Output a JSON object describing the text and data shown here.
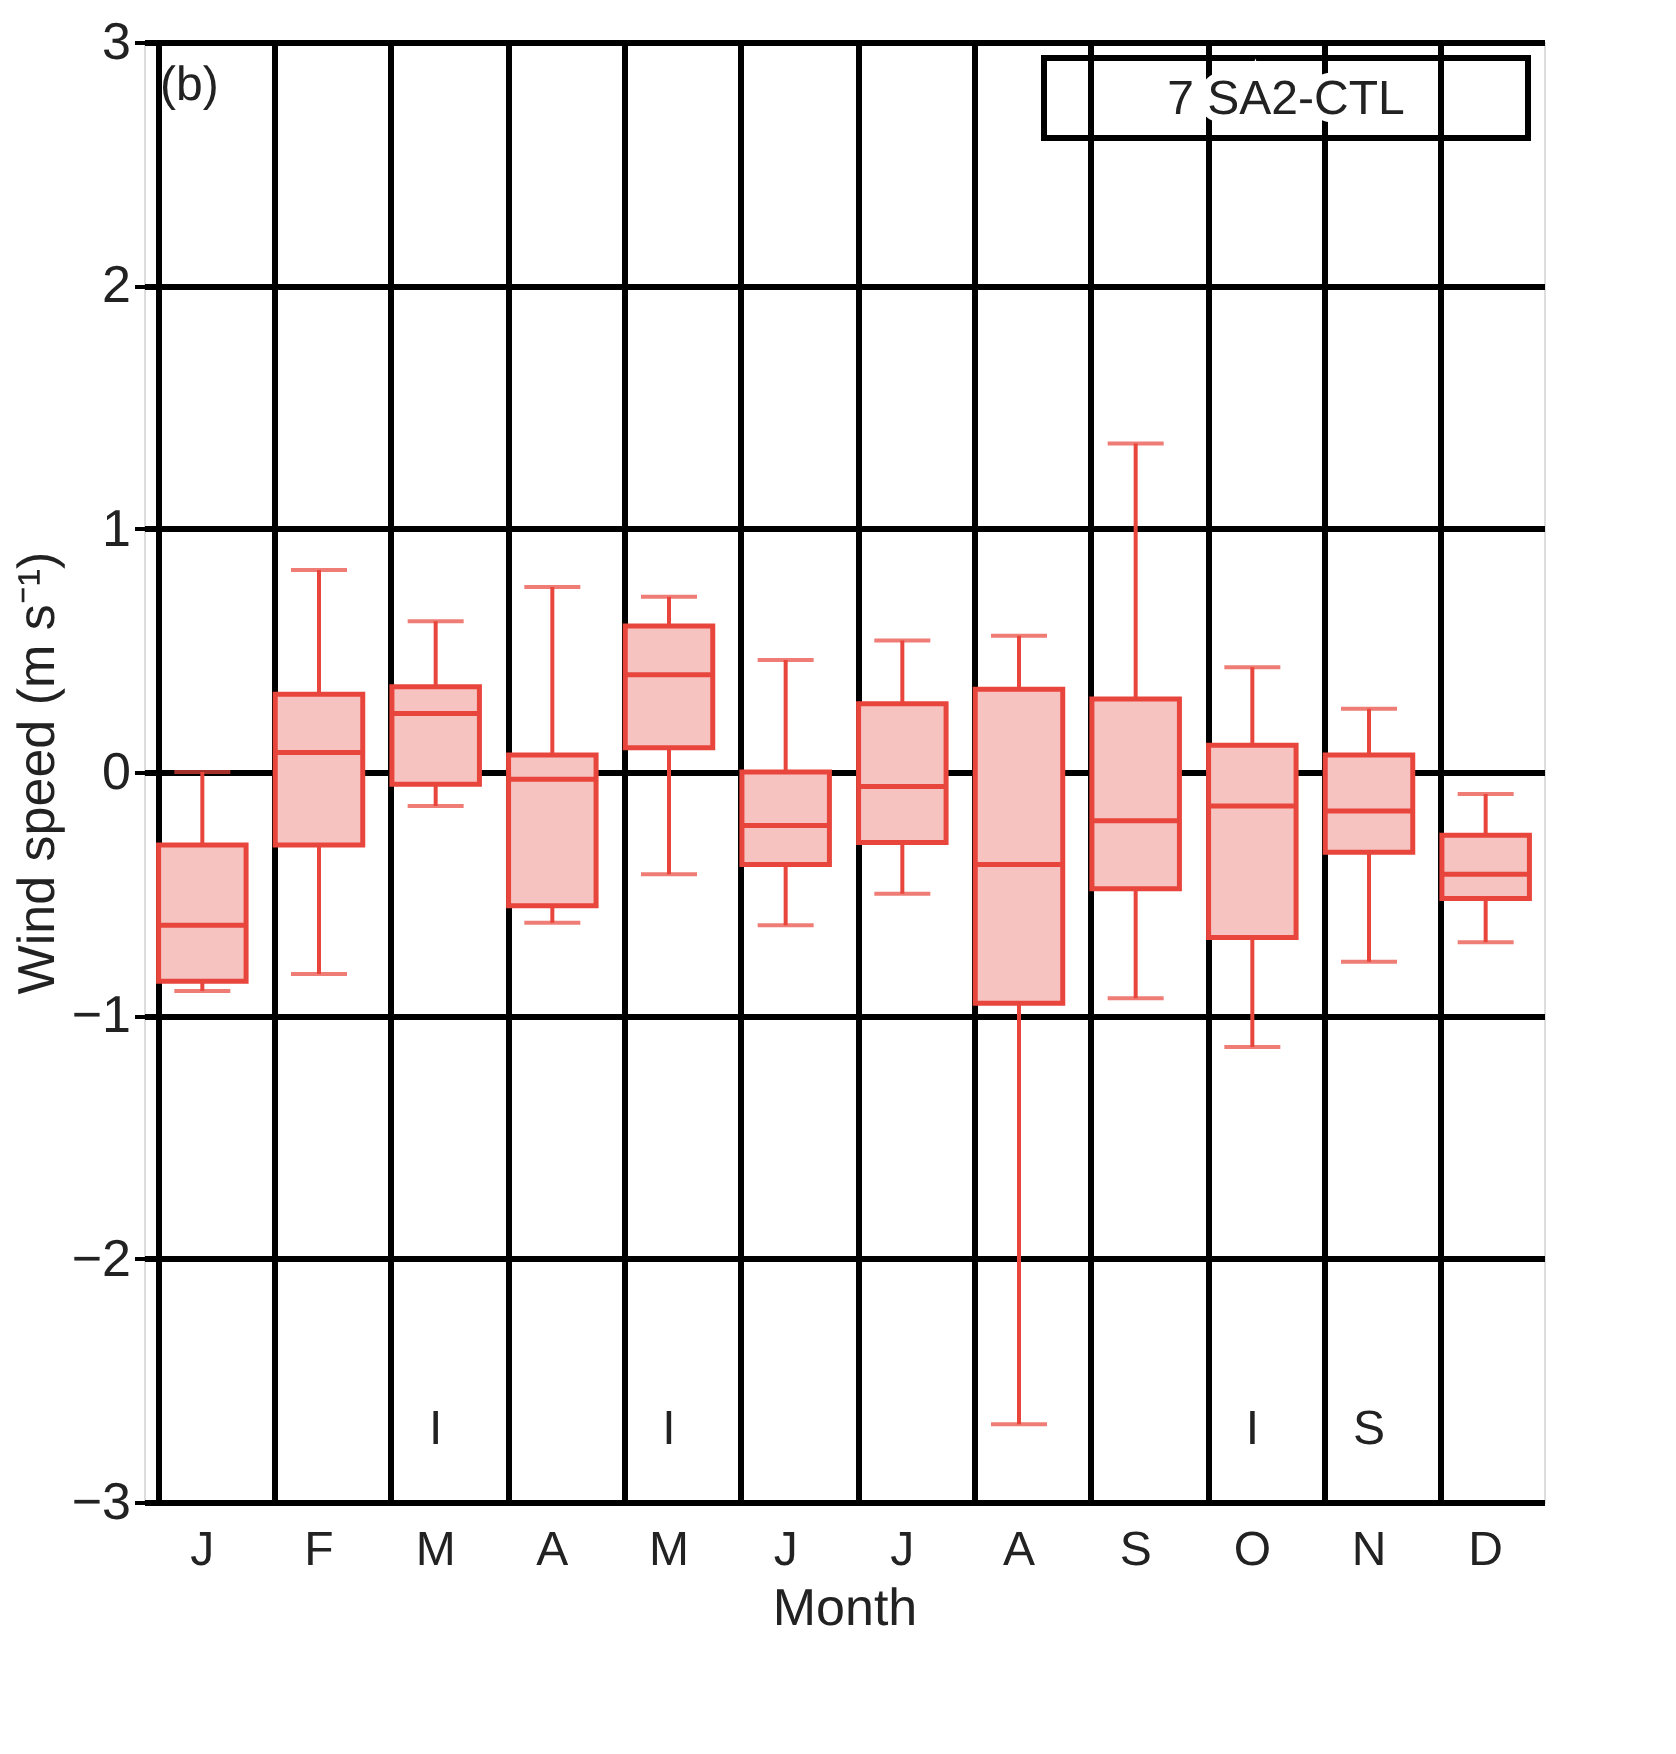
{
  "chart_data": {
    "type": "box",
    "xlabel": "Month",
    "ylabel": "Wind speed (m s⁻¹)",
    "categories": [
      "J",
      "F",
      "M",
      "A",
      "M",
      "J",
      "J",
      "A",
      "S",
      "O",
      "N",
      "D"
    ],
    "series": [
      {
        "color": "#e8463c",
        "boxes": [
          {
            "low": -0.9,
            "q1": -0.86,
            "median": -0.63,
            "q3": -0.3,
            "high": 0.0
          },
          {
            "low": -0.83,
            "q1": -0.3,
            "median": 0.08,
            "q3": 0.32,
            "high": 0.83
          },
          {
            "low": -0.14,
            "q1": -0.05,
            "median": 0.24,
            "q3": 0.35,
            "high": 0.62
          },
          {
            "low": -0.62,
            "q1": -0.55,
            "median": -0.03,
            "q3": 0.07,
            "high": 0.76
          },
          {
            "low": -0.42,
            "q1": 0.1,
            "median": 0.4,
            "q3": 0.6,
            "high": 0.72
          },
          {
            "low": -0.63,
            "q1": -0.38,
            "median": -0.22,
            "q3": 0.0,
            "high": 0.46
          },
          {
            "low": -0.5,
            "q1": -0.29,
            "median": -0.06,
            "q3": 0.28,
            "high": 0.54
          },
          {
            "low": -2.68,
            "q1": -0.95,
            "median": -0.38,
            "q3": 0.34,
            "high": 0.56
          },
          {
            "low": -0.93,
            "q1": -0.48,
            "median": -0.2,
            "q3": 0.3,
            "high": 1.35
          },
          {
            "low": -1.13,
            "q1": -0.68,
            "median": -0.14,
            "q3": 0.11,
            "high": 0.43
          },
          {
            "low": -0.78,
            "q1": -0.33,
            "median": -0.16,
            "q3": 0.07,
            "high": 0.26
          },
          {
            "low": -0.7,
            "q1": -0.52,
            "median": -0.42,
            "q3": -0.26,
            "high": -0.09
          }
        ]
      }
    ],
    "ylim": [
      -3,
      3
    ],
    "yticks": [
      {
        "value": -3,
        "label": "−3"
      },
      {
        "value": -2,
        "label": "−2"
      },
      {
        "value": -1,
        "label": "−1"
      },
      0,
      1,
      2,
      3
    ],
    "grid": true,
    "annotations": [
      "(b)",
      "7 SA2-CTL",
      "I",
      "I",
      "I",
      "S"
    ]
  }
}
